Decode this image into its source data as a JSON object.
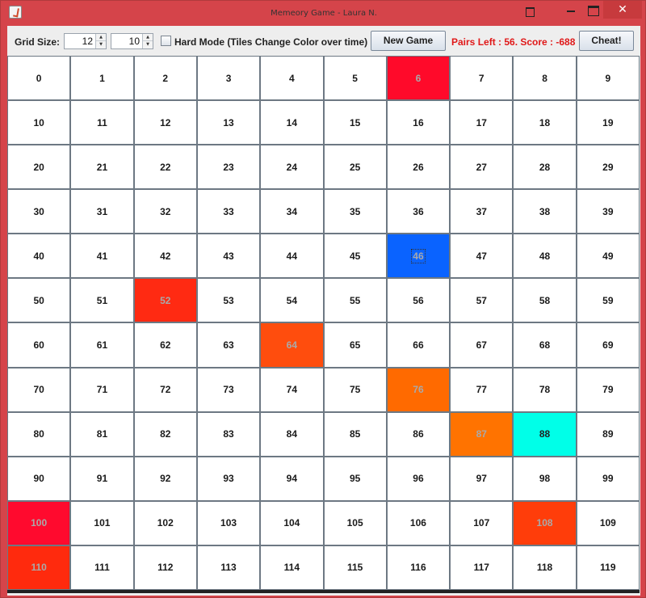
{
  "window": {
    "title": "Memeory Game - Laura N.",
    "close_glyph": "✕"
  },
  "toolbar": {
    "grid_size_label": "Grid Size:",
    "rows_value": "12",
    "cols_value": "10",
    "hard_mode_label": "Hard Mode (Tiles Change Color over time)",
    "hard_mode_checked": false,
    "new_game_label": "New Game",
    "status_text": "Pairs Left : 56. Score : -688",
    "cheat_label": "Cheat!",
    "status_color": "#e01818"
  },
  "grid": {
    "rows": 12,
    "cols": 10,
    "tile_count": 120,
    "revealed": [
      {
        "index": 6,
        "color": "#ff0a2a"
      },
      {
        "index": 46,
        "color": "#0a63ff",
        "focused": true
      },
      {
        "index": 52,
        "color": "#ff2a12"
      },
      {
        "index": 64,
        "color": "#ff4d0d"
      },
      {
        "index": 76,
        "color": "#ff6a00"
      },
      {
        "index": 87,
        "color": "#ff7300"
      },
      {
        "index": 88,
        "color": "#00ffe8",
        "dark_text": true
      },
      {
        "index": 100,
        "color": "#ff0a2e"
      },
      {
        "index": 108,
        "color": "#ff3d0a"
      },
      {
        "index": 110,
        "color": "#ff2a0d"
      }
    ]
  }
}
